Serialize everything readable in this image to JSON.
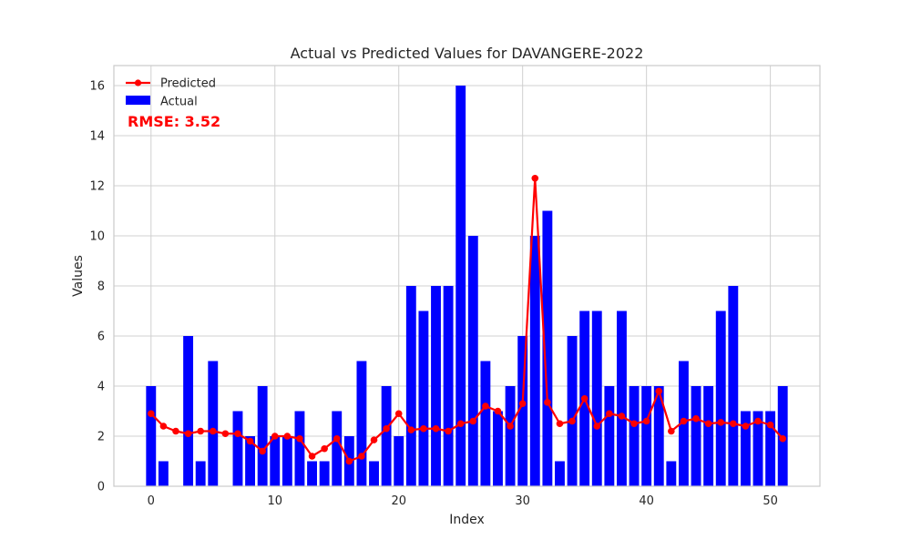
{
  "chart_data": {
    "type": "bar",
    "title": "Actual vs Predicted Values for DAVANGERE-2022",
    "xlabel": "Index",
    "ylabel": "Values",
    "xlim": [
      -3,
      54
    ],
    "ylim": [
      0,
      16.8
    ],
    "xticks": [
      0,
      10,
      20,
      30,
      40,
      50
    ],
    "yticks": [
      0,
      2,
      4,
      6,
      8,
      10,
      12,
      14,
      16
    ],
    "grid": true,
    "legend_position": "upper-left",
    "annotation": "RMSE: 3.52",
    "colors": {
      "actual": "#0000ff",
      "predicted": "#ff0000",
      "annotation": "#ff0000",
      "grid": "#d0d0d0",
      "frame": "#cccccc"
    },
    "x": [
      0,
      1,
      2,
      3,
      4,
      5,
      6,
      7,
      8,
      9,
      10,
      11,
      12,
      13,
      14,
      15,
      16,
      17,
      18,
      19,
      20,
      21,
      22,
      23,
      24,
      25,
      26,
      27,
      28,
      29,
      30,
      31,
      32,
      33,
      34,
      35,
      36,
      37,
      38,
      39,
      40,
      41,
      42,
      43,
      44,
      45,
      46,
      47,
      48,
      49,
      50,
      51
    ],
    "series": [
      {
        "name": "Actual",
        "kind": "bar",
        "values": [
          4,
          1,
          0,
          6,
          1,
          5,
          0,
          3,
          2,
          4,
          2,
          2,
          3,
          1,
          1,
          3,
          2,
          5,
          1,
          4,
          2,
          8,
          7,
          8,
          8,
          16,
          10,
          5,
          3,
          4,
          6,
          10,
          11,
          1,
          6,
          7,
          7,
          4,
          7,
          4,
          4,
          4,
          1,
          5,
          4,
          4,
          7,
          8,
          3,
          3,
          3,
          4
        ]
      },
      {
        "name": "Predicted",
        "kind": "line",
        "values": [
          2.9,
          2.4,
          2.2,
          2.1,
          2.2,
          2.2,
          2.1,
          2.1,
          1.8,
          1.4,
          2.0,
          2.0,
          1.9,
          1.2,
          1.5,
          1.9,
          1.0,
          1.2,
          1.85,
          2.3,
          2.9,
          2.25,
          2.3,
          2.3,
          2.2,
          2.5,
          2.6,
          3.2,
          3.0,
          2.4,
          3.3,
          12.3,
          3.35,
          2.5,
          2.6,
          3.5,
          2.4,
          2.9,
          2.8,
          2.5,
          2.6,
          3.8,
          2.2,
          2.6,
          2.7,
          2.5,
          2.55,
          2.5,
          2.4,
          2.6,
          2.45,
          1.9
        ]
      }
    ]
  }
}
